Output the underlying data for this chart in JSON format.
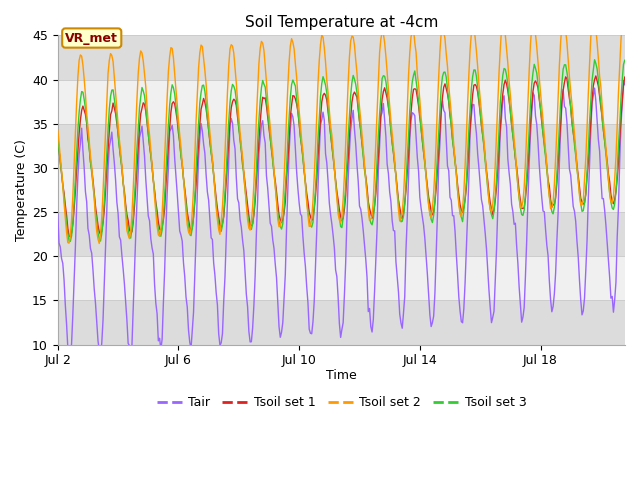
{
  "title": "Soil Temperature at -4cm",
  "xlabel": "Time",
  "ylabel": "Temperature (C)",
  "ylim": [
    10,
    45
  ],
  "xlim_start": 1.0,
  "xlim_end": 19.8,
  "x_ticks_labels": [
    "Jul 2",
    "Jul 6",
    "Jul 10",
    "Jul 14",
    "Jul 18"
  ],
  "x_ticks_positions": [
    1,
    5,
    9,
    13,
    17
  ],
  "yticks": [
    10,
    15,
    20,
    25,
    30,
    35,
    40,
    45
  ],
  "grid_color": "#cccccc",
  "bg_color_light": "#f0f0f0",
  "bg_color_dark": "#dcdcdc",
  "fig_bg": "#ffffff",
  "legend_labels": [
    "Tair",
    "Tsoil set 1",
    "Tsoil set 2",
    "Tsoil set 3"
  ],
  "line_colors": [
    "#9966ff",
    "#dd2222",
    "#ff9900",
    "#33cc33"
  ],
  "annotation_text": "VR_met",
  "annotation_bg": "#ffffcc",
  "annotation_border": "#cc8800",
  "annotation_text_color": "#880000",
  "band_ranges": [
    [
      10,
      15
    ],
    [
      15,
      20
    ],
    [
      20,
      25
    ],
    [
      25,
      30
    ],
    [
      30,
      35
    ],
    [
      35,
      40
    ],
    [
      40,
      45
    ]
  ],
  "band_colors": [
    "#dcdcdc",
    "#f0f0f0",
    "#dcdcdc",
    "#f0f0f0",
    "#dcdcdc",
    "#f0f0f0",
    "#dcdcdc"
  ]
}
